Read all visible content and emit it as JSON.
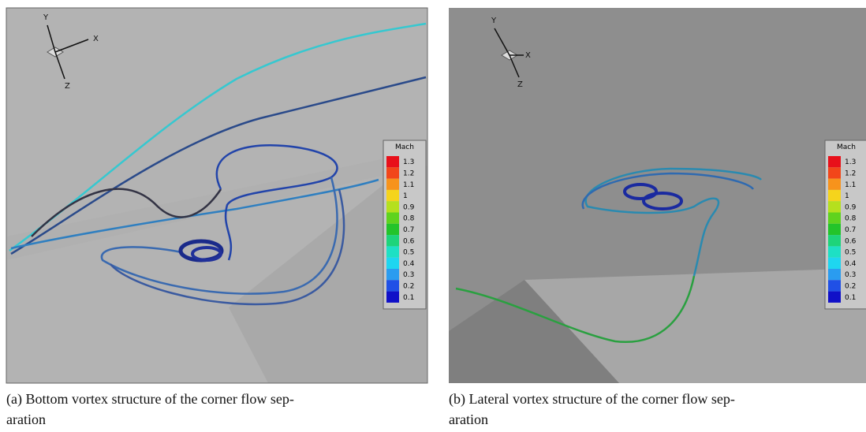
{
  "panels": [
    {
      "axes": {
        "y": "Y",
        "x": "X",
        "z": "Z"
      },
      "legend": {
        "title": "Mach",
        "levels": [
          1.3,
          1.2,
          1.1,
          1,
          0.9,
          0.8,
          0.7,
          0.6,
          0.5,
          0.4,
          0.3,
          0.2,
          0.1
        ],
        "colors": [
          "#e8101a",
          "#f2461a",
          "#f7931c",
          "#f5d41c",
          "#b5e01e",
          "#5fd31e",
          "#23c42a",
          "#1ed47a",
          "#1ee0c4",
          "#1ed6f0",
          "#2a9cf0",
          "#2050e6",
          "#1010c8"
        ]
      },
      "caption": [
        "(a) Bottom vortex structure of the corner flow sep-",
        "aration"
      ]
    },
    {
      "axes": {
        "y": "Y",
        "x": "X",
        "z": "Z"
      },
      "legend": {
        "title": "Mach",
        "levels": [
          1.3,
          1.2,
          1.1,
          1,
          0.9,
          0.8,
          0.7,
          0.6,
          0.5,
          0.4,
          0.3,
          0.2,
          0.1
        ],
        "colors": [
          "#e8101a",
          "#f2461a",
          "#f7931c",
          "#f5d41c",
          "#b5e01e",
          "#5fd31e",
          "#23c42a",
          "#1ed47a",
          "#1ee0c4",
          "#1ed6f0",
          "#2a9cf0",
          "#2050e6",
          "#1010c8"
        ]
      },
      "caption": [
        "(b) Lateral vortex structure of the corner flow sep-",
        "aration"
      ]
    }
  ]
}
